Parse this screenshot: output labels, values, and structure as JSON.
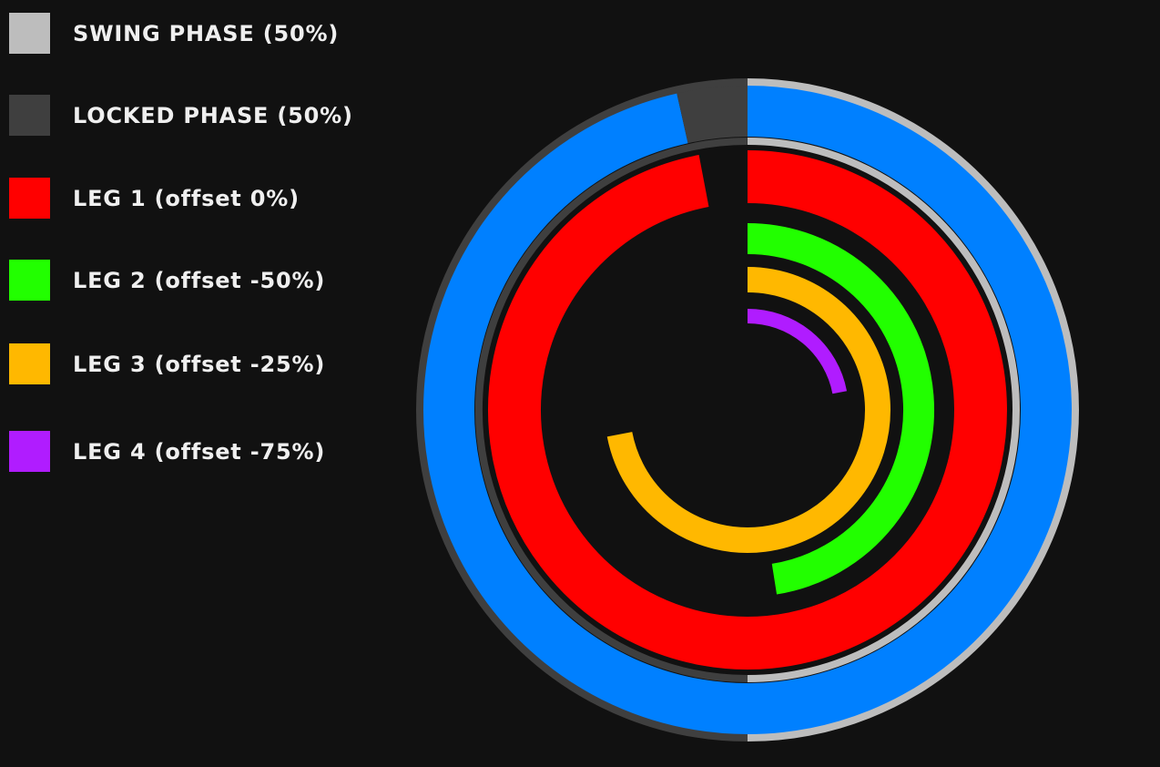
{
  "legend": [
    {
      "key": "swing",
      "label": "SWING PHASE (50%)",
      "color": "#bdbdbd"
    },
    {
      "key": "locked",
      "label": "LOCKED PHASE (50%)",
      "color": "#3f3f3f"
    },
    {
      "key": "leg1",
      "label": "LEG 1 (offset 0%)",
      "color": "#ff0000"
    },
    {
      "key": "leg2",
      "label": "LEG 2 (offset -50%)",
      "color": "#22ff00"
    },
    {
      "key": "leg3",
      "label": "LEG 3 (offset -25%)",
      "color": "#ffb800"
    },
    {
      "key": "leg4",
      "label": "LEG 4 (offset -75%)",
      "color": "#b01cff"
    }
  ],
  "colors": {
    "background": "#111111",
    "outer_progress": "#0080ff",
    "swing": "#bdbdbd",
    "locked": "#3f3f3f"
  },
  "phase_ring": {
    "swing_fraction": 0.5,
    "locked_fraction": 0.5,
    "outer_progress_fraction": 0.965
  },
  "legs": [
    {
      "key": "leg1",
      "color": "#ff0000",
      "progress_fraction": 0.97
    },
    {
      "key": "leg2",
      "color": "#22ff00",
      "progress_fraction": 0.475
    },
    {
      "key": "leg3",
      "color": "#ffb800",
      "progress_fraction": 0.72
    },
    {
      "key": "leg4",
      "color": "#b01cff",
      "progress_fraction": 0.22
    }
  ]
}
